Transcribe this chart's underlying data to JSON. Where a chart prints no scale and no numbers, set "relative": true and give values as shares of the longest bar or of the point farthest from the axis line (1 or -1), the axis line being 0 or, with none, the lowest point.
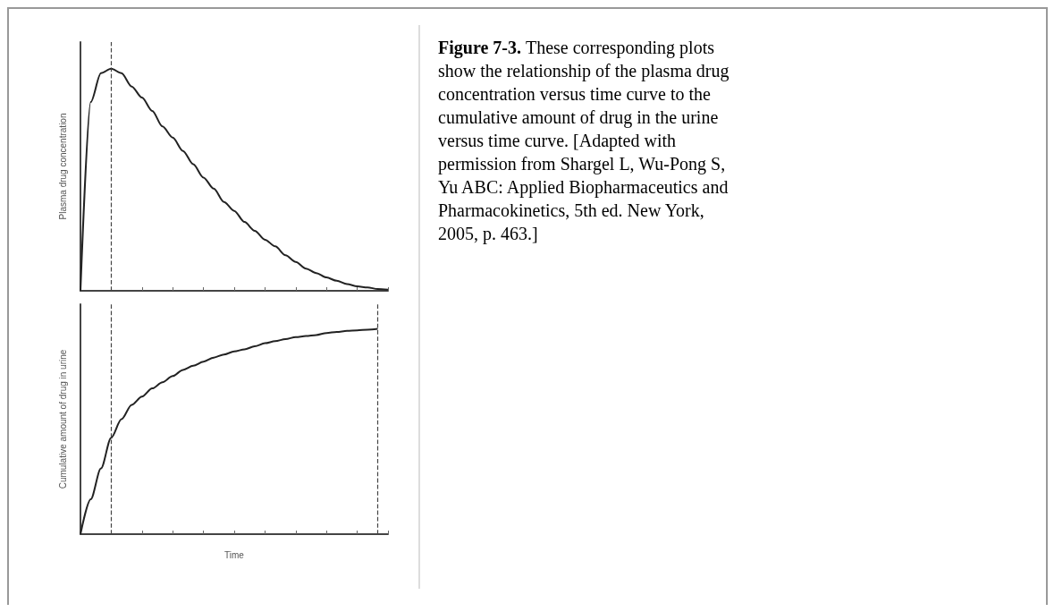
{
  "chart_data": [
    {
      "type": "line",
      "ylabel": "Plasma drug concentration",
      "relative": true,
      "categories": [
        null,
        null,
        null,
        null,
        null,
        null,
        null,
        null,
        null,
        null,
        null,
        null,
        null,
        null,
        null,
        null,
        null,
        null,
        null,
        null,
        null,
        null,
        null,
        null,
        null,
        null,
        null,
        null,
        null,
        null,
        null
      ],
      "series": [
        {
          "color": "#222222",
          "values": [
            0,
            0.85,
            0.98,
            1.0,
            0.98,
            0.92,
            0.87,
            0.81,
            0.74,
            0.69,
            0.63,
            0.57,
            0.51,
            0.46,
            0.4,
            0.36,
            0.31,
            0.27,
            0.23,
            0.2,
            0.16,
            0.13,
            0.1,
            0.08,
            0.06,
            0.045,
            0.03,
            0.02,
            0.015,
            0.008,
            0.005
          ]
        }
      ],
      "grid": false,
      "marker": "none",
      "line_style": "solid",
      "annotations": [
        "Figure 7-3.",
        "These corresponding plots show the relationship of the plasma drug concentration versus time curve to the cumulative amount of drug in the urine versus time curve. [Adapted with permission from Shargel L, Wu-Pong S, Yu ABC: Applied Biopharmaceutics and Pharmacokinetics, 5th ed. New York, 2005, p. 463.]"
      ]
    },
    {
      "type": "line",
      "xlabel": "Time",
      "ylabel": "Cumulative amount of drug in urine",
      "relative": true,
      "categories": [
        null,
        null,
        null,
        null,
        null,
        null,
        null,
        null,
        null,
        null,
        null,
        null,
        null,
        null,
        null,
        null,
        null,
        null,
        null,
        null,
        null,
        null,
        null,
        null,
        null,
        null,
        null,
        null,
        null,
        null,
        null
      ],
      "series": [
        {
          "color": "#222222",
          "values": [
            0,
            0.17,
            0.32,
            0.47,
            0.56,
            0.63,
            0.67,
            0.71,
            0.74,
            0.77,
            0.8,
            0.82,
            0.84,
            0.86,
            0.875,
            0.89,
            0.9,
            0.915,
            0.93,
            0.94,
            0.95,
            0.96,
            0.965,
            0.97,
            0.98,
            0.985,
            0.99,
            0.993,
            0.996,
            1.0,
            null
          ]
        }
      ],
      "grid": false,
      "marker": "none",
      "line_style": "solid"
    }
  ]
}
